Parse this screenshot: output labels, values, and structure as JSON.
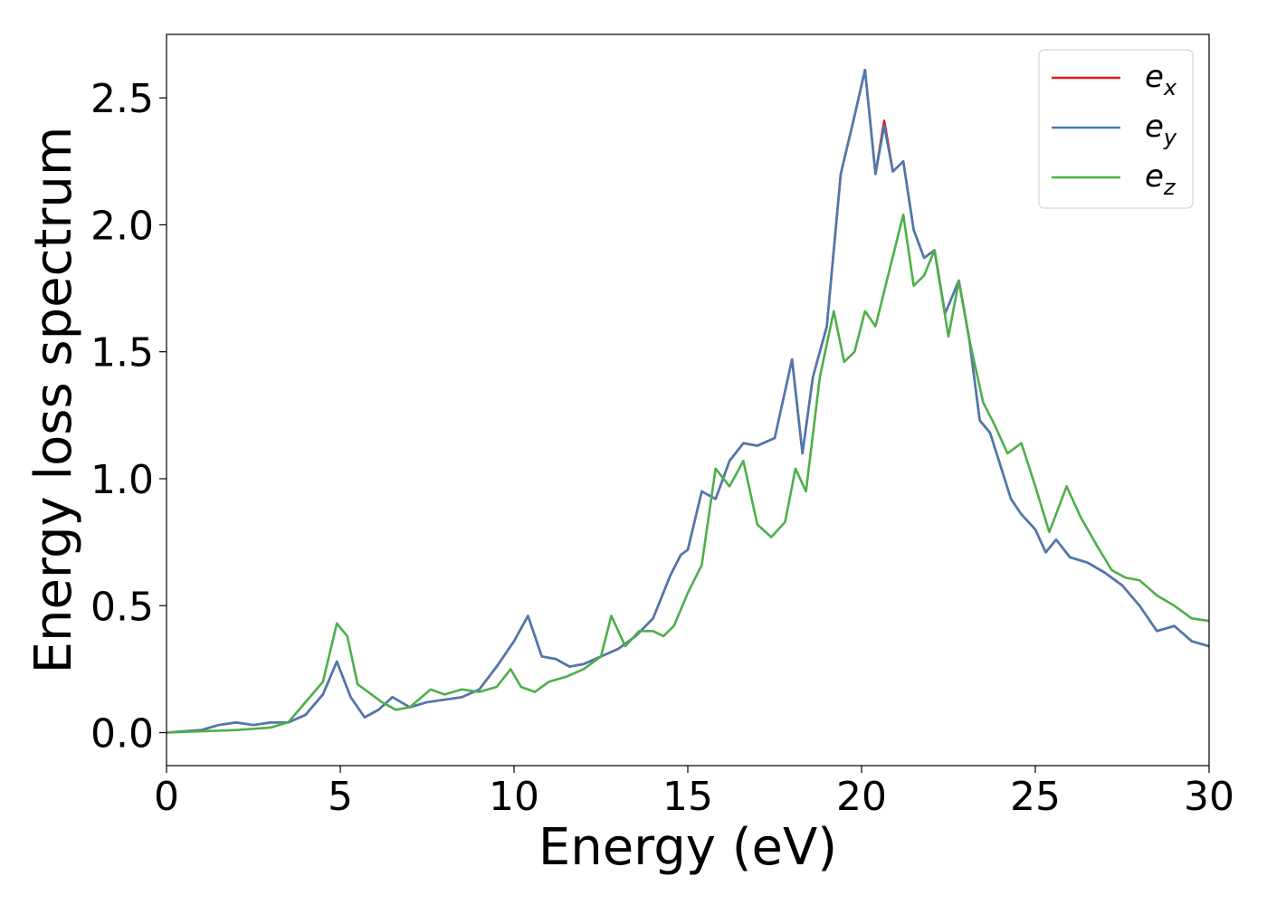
{
  "chart_data": {
    "type": "line",
    "xlabel": "Energy (eV)",
    "ylabel": "Energy loss spectrum",
    "xlim": [
      0,
      30
    ],
    "ylim": [
      -0.13,
      2.75
    ],
    "xticks": [
      0,
      5,
      10,
      15,
      20,
      25,
      30
    ],
    "xtick_labels": [
      "0",
      "5",
      "10",
      "15",
      "20",
      "25",
      "30"
    ],
    "yticks": [
      0.0,
      0.5,
      1.0,
      1.5,
      2.0,
      2.5
    ],
    "ytick_labels": [
      "0.0",
      "0.5",
      "1.0",
      "1.5",
      "2.0",
      "2.5"
    ],
    "grid": false,
    "legend_position": "top-right",
    "series": [
      {
        "name": "e_x",
        "label_base": "e",
        "label_sub": "x",
        "color": "#e41a1c",
        "x": [
          0,
          1,
          1.5,
          2,
          2.5,
          3,
          3.5,
          4,
          4.5,
          4.9,
          5.3,
          5.7,
          6.1,
          6.5,
          7,
          7.5,
          8,
          8.5,
          9,
          9.5,
          10,
          10.4,
          10.8,
          11.2,
          11.6,
          12,
          12.5,
          13,
          13.5,
          14,
          14.5,
          14.8,
          15,
          15.4,
          15.8,
          16.2,
          16.6,
          17,
          17.5,
          18,
          18.3,
          18.6,
          19,
          19.4,
          19.8,
          20.1,
          20.4,
          20.65,
          20.9,
          21.2,
          21.5,
          21.8,
          22.1,
          22.4,
          22.8,
          23.1,
          23.4,
          23.7,
          24,
          24.3,
          24.6,
          25,
          25.3,
          25.6,
          26,
          26.5,
          27,
          27.5,
          28,
          28.5,
          29,
          29.5,
          30
        ],
        "values": [
          0,
          0.01,
          0.03,
          0.04,
          0.03,
          0.04,
          0.04,
          0.07,
          0.15,
          0.28,
          0.14,
          0.06,
          0.09,
          0.14,
          0.1,
          0.12,
          0.13,
          0.14,
          0.17,
          0.26,
          0.36,
          0.46,
          0.3,
          0.29,
          0.26,
          0.27,
          0.3,
          0.33,
          0.38,
          0.45,
          0.62,
          0.7,
          0.72,
          0.95,
          0.92,
          1.07,
          1.14,
          1.13,
          1.16,
          1.47,
          1.1,
          1.4,
          1.6,
          2.2,
          2.43,
          2.61,
          2.2,
          2.41,
          2.21,
          2.25,
          1.98,
          1.87,
          1.9,
          1.65,
          1.78,
          1.55,
          1.23,
          1.18,
          1.05,
          0.92,
          0.86,
          0.8,
          0.71,
          0.76,
          0.69,
          0.67,
          0.63,
          0.58,
          0.5,
          0.4,
          0.42,
          0.36,
          0.34
        ]
      },
      {
        "name": "e_y",
        "label_base": "e",
        "label_sub": "y",
        "color": "#4a7ab0",
        "x": [
          0,
          1,
          1.5,
          2,
          2.5,
          3,
          3.5,
          4,
          4.5,
          4.9,
          5.3,
          5.7,
          6.1,
          6.5,
          7,
          7.5,
          8,
          8.5,
          9,
          9.5,
          10,
          10.4,
          10.8,
          11.2,
          11.6,
          12,
          12.5,
          13,
          13.5,
          14,
          14.5,
          14.8,
          15,
          15.4,
          15.8,
          16.2,
          16.6,
          17,
          17.5,
          18,
          18.3,
          18.6,
          19,
          19.4,
          19.8,
          20.1,
          20.4,
          20.65,
          20.9,
          21.2,
          21.5,
          21.8,
          22.1,
          22.4,
          22.8,
          23.1,
          23.4,
          23.7,
          24,
          24.3,
          24.6,
          25,
          25.3,
          25.6,
          26,
          26.5,
          27,
          27.5,
          28,
          28.5,
          29,
          29.5,
          30
        ],
        "values": [
          0,
          0.01,
          0.03,
          0.04,
          0.03,
          0.04,
          0.04,
          0.07,
          0.15,
          0.28,
          0.14,
          0.06,
          0.09,
          0.14,
          0.1,
          0.12,
          0.13,
          0.14,
          0.17,
          0.26,
          0.36,
          0.46,
          0.3,
          0.29,
          0.26,
          0.27,
          0.3,
          0.33,
          0.38,
          0.45,
          0.62,
          0.7,
          0.72,
          0.95,
          0.92,
          1.07,
          1.14,
          1.13,
          1.16,
          1.47,
          1.1,
          1.4,
          1.6,
          2.2,
          2.43,
          2.61,
          2.2,
          2.39,
          2.21,
          2.25,
          1.98,
          1.87,
          1.9,
          1.65,
          1.78,
          1.55,
          1.23,
          1.18,
          1.05,
          0.92,
          0.86,
          0.8,
          0.71,
          0.76,
          0.69,
          0.67,
          0.63,
          0.58,
          0.5,
          0.4,
          0.42,
          0.36,
          0.34
        ]
      },
      {
        "name": "e_z",
        "label_base": "e",
        "label_sub": "z",
        "color": "#4daf4a",
        "x": [
          0,
          1,
          2,
          3,
          3.5,
          4,
          4.5,
          4.9,
          5.2,
          5.5,
          5.8,
          6.2,
          6.6,
          7,
          7.6,
          8,
          8.5,
          9,
          9.5,
          9.9,
          10.2,
          10.6,
          11,
          11.5,
          12,
          12.5,
          12.8,
          13.2,
          13.6,
          14,
          14.3,
          14.6,
          15,
          15.4,
          15.8,
          16.2,
          16.6,
          17,
          17.4,
          17.8,
          18.1,
          18.4,
          18.8,
          19.2,
          19.5,
          19.8,
          20.1,
          20.4,
          20.8,
          21.2,
          21.5,
          21.8,
          22.1,
          22.5,
          22.8,
          23.1,
          23.5,
          23.8,
          24.2,
          24.6,
          25,
          25.4,
          25.9,
          26.3,
          26.8,
          27.2,
          27.6,
          28,
          28.5,
          29,
          29.5,
          30
        ],
        "values": [
          0,
          0.005,
          0.01,
          0.02,
          0.04,
          0.12,
          0.2,
          0.43,
          0.38,
          0.19,
          0.16,
          0.12,
          0.09,
          0.1,
          0.17,
          0.15,
          0.17,
          0.16,
          0.18,
          0.25,
          0.18,
          0.16,
          0.2,
          0.22,
          0.25,
          0.3,
          0.46,
          0.34,
          0.4,
          0.4,
          0.38,
          0.42,
          0.55,
          0.66,
          1.04,
          0.97,
          1.07,
          0.82,
          0.77,
          0.83,
          1.04,
          0.95,
          1.4,
          1.66,
          1.46,
          1.5,
          1.66,
          1.6,
          1.82,
          2.04,
          1.76,
          1.8,
          1.9,
          1.56,
          1.78,
          1.55,
          1.3,
          1.22,
          1.1,
          1.14,
          0.97,
          0.79,
          0.97,
          0.85,
          0.73,
          0.64,
          0.61,
          0.6,
          0.54,
          0.5,
          0.45,
          0.44
        ]
      }
    ]
  }
}
